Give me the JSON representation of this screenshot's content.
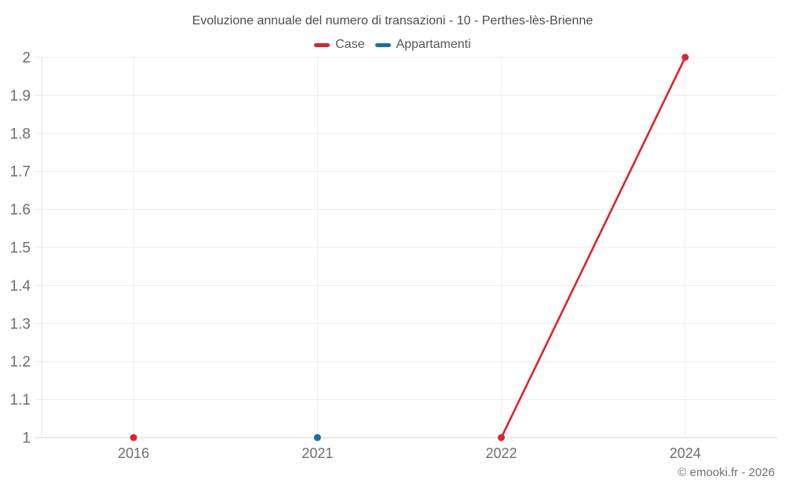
{
  "footer": {
    "copyright": "© emooki.fr - 2026"
  },
  "colors": {
    "grid": "#ececec",
    "axis_border_left": "#e4e4e4",
    "axis_border_bottom": "#d6d6d6",
    "tick_label": "#6e6e6e",
    "title_text": "#4d4d4d",
    "legend_text": "#565656",
    "copyright_text": "#737373",
    "case_red": "#d9252d",
    "appartamenti_blue": "#176fa5"
  },
  "chart_data": {
    "type": "line",
    "title": "Evoluzione annuale del numero di transazioni - 10 - Perthes-lès-Brienne",
    "categories": [
      "2016",
      "2021",
      "2022",
      "2024"
    ],
    "series": [
      {
        "name": "Case",
        "color": "#d9252d",
        "values": [
          1,
          null,
          1,
          2
        ]
      },
      {
        "name": "Appartamenti",
        "color": "#176fa5",
        "values": [
          null,
          1,
          null,
          null
        ]
      }
    ],
    "ylim": [
      1,
      2
    ],
    "ytick_step": 0.1,
    "ytick_labels": [
      "1",
      "1.1",
      "1.2",
      "1.3",
      "1.4",
      "1.5",
      "1.6",
      "1.7",
      "1.8",
      "1.9",
      "2"
    ],
    "grid": true,
    "legend_position": "top",
    "marker_radius": 4.5,
    "line_width": 2.6
  }
}
